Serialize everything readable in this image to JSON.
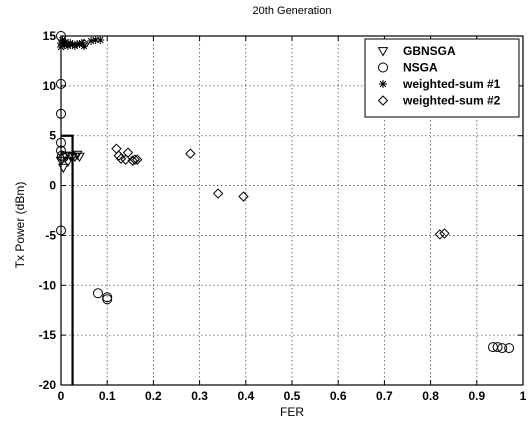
{
  "chart_data": {
    "type": "scatter",
    "title": "20th Generation",
    "xlabel": "FER",
    "ylabel": "Tx Power (dBm)",
    "xlim": [
      0,
      1
    ],
    "ylim": [
      -20,
      15
    ],
    "xticks": [
      0,
      0.1,
      0.2,
      0.3,
      0.4,
      0.5,
      0.6,
      0.7,
      0.8,
      0.9,
      1
    ],
    "yticks": [
      -20,
      -15,
      -10,
      -5,
      0,
      5,
      10,
      15
    ],
    "x_tick_labels": [
      "0",
      "0.1",
      "0.2",
      "0.3",
      "0.4",
      "0.5",
      "0.6",
      "0.7",
      "0.8",
      "0.9",
      "1"
    ],
    "y_tick_labels": [
      "-20",
      "-15",
      "-10",
      "-5",
      "0",
      "5",
      "10",
      "15"
    ],
    "grid": true,
    "legend_position": "top-right",
    "series": [
      {
        "name": "GBNSGA",
        "marker": "triangle-down",
        "points": [
          [
            0.0,
            2.5
          ],
          [
            0.005,
            1.8
          ],
          [
            0.01,
            3.0
          ],
          [
            0.015,
            2.4
          ],
          [
            0.02,
            3.0
          ],
          [
            0.025,
            2.9
          ],
          [
            0.03,
            2.9
          ],
          [
            0.035,
            3.1
          ],
          [
            0.04,
            2.9
          ]
        ]
      },
      {
        "name": "NSGA",
        "marker": "circle",
        "points": [
          [
            0.0,
            15.0
          ],
          [
            0.0,
            10.2
          ],
          [
            0.0,
            7.2
          ],
          [
            0.0,
            4.3
          ],
          [
            0.0,
            3.5
          ],
          [
            0.002,
            3.0
          ],
          [
            0.005,
            2.8
          ],
          [
            0.0,
            -4.5
          ],
          [
            0.08,
            -10.8
          ],
          [
            0.1,
            -11.2
          ],
          [
            0.1,
            -11.4
          ],
          [
            0.935,
            -16.2
          ],
          [
            0.945,
            -16.2
          ],
          [
            0.955,
            -16.3
          ],
          [
            0.97,
            -16.3
          ]
        ]
      },
      {
        "name": "weighted-sum #1",
        "marker": "star",
        "points": [
          [
            0.0,
            14.3
          ],
          [
            0.0,
            13.9
          ],
          [
            0.003,
            14.6
          ],
          [
            0.007,
            14.1
          ],
          [
            0.01,
            14.4
          ],
          [
            0.015,
            14.0
          ],
          [
            0.02,
            14.3
          ],
          [
            0.025,
            14.1
          ],
          [
            0.03,
            14.0
          ],
          [
            0.035,
            14.2
          ],
          [
            0.04,
            14.2
          ],
          [
            0.045,
            14.3
          ],
          [
            0.05,
            14.0
          ],
          [
            0.065,
            14.5
          ],
          [
            0.075,
            14.6
          ],
          [
            0.085,
            14.6
          ]
        ]
      },
      {
        "name": "weighted-sum #2",
        "marker": "diamond",
        "points": [
          [
            0.05,
            14.2
          ],
          [
            0.12,
            3.7
          ],
          [
            0.125,
            3.0
          ],
          [
            0.13,
            2.7
          ],
          [
            0.14,
            2.6
          ],
          [
            0.145,
            3.3
          ],
          [
            0.155,
            2.5
          ],
          [
            0.16,
            2.6
          ],
          [
            0.165,
            2.6
          ],
          [
            0.28,
            3.2
          ],
          [
            0.34,
            -0.8
          ],
          [
            0.395,
            -1.1
          ],
          [
            0.82,
            -4.9
          ],
          [
            0.83,
            -4.8
          ]
        ]
      }
    ],
    "reference_line": [
      [
        0.0,
        5.0
      ],
      [
        0.025,
        5.0
      ],
      [
        0.025,
        -20.0
      ]
    ]
  },
  "colors": {
    "axis": "#000000",
    "grid": "#555555",
    "marker": "#000000"
  }
}
